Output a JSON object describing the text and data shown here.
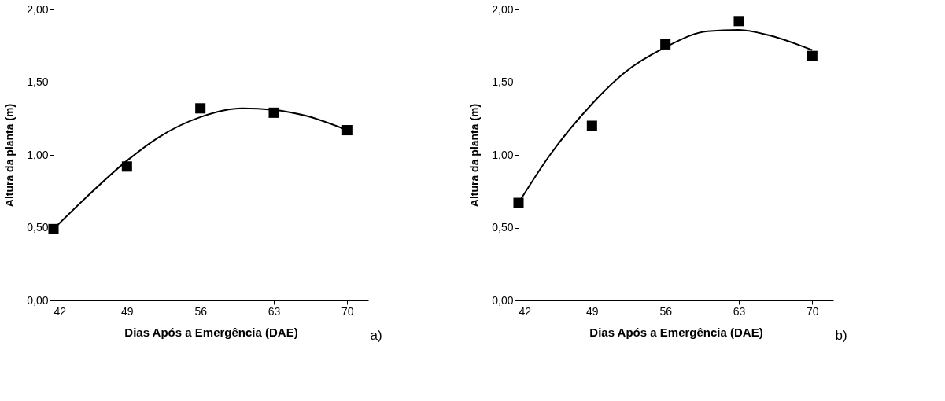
{
  "chart_data": [
    {
      "type": "scatter",
      "xlabel": "Dias Após a Emergência (DAE)",
      "ylabel": "Altura da planta (m)",
      "annotations": [
        "a)"
      ],
      "grid": false,
      "xlim": [
        42,
        72
      ],
      "xticks": [
        42,
        49,
        56,
        63,
        70
      ],
      "ylim": [
        0,
        2
      ],
      "yticks": [
        {
          "value": 0,
          "label": "0,00"
        },
        {
          "value": 0.5,
          "label": "0,50"
        },
        {
          "value": 1,
          "label": "1,00"
        },
        {
          "value": 1.5,
          "label": "1,50"
        },
        {
          "value": 2,
          "label": "2,00"
        }
      ],
      "series": [
        {
          "color": "#000000",
          "marker": "square",
          "x": [
            42,
            49,
            56,
            63,
            70
          ],
          "values": [
            0.49,
            0.92,
            1.32,
            1.29,
            1.17
          ]
        },
        {
          "type": "line",
          "color": "#000000",
          "marker": "none",
          "line_style": "solid",
          "x": [
            42,
            45,
            49,
            52,
            56,
            60,
            63,
            66,
            70
          ],
          "values": [
            0.49,
            0.7,
            0.96,
            1.12,
            1.26,
            1.32,
            1.31,
            1.27,
            1.17
          ]
        }
      ]
    },
    {
      "type": "scatter",
      "xlabel": "Dias Após a Emergência (DAE)",
      "ylabel": "Altura da planta (m)",
      "annotations": [
        "b)"
      ],
      "grid": false,
      "xlim": [
        42,
        72
      ],
      "xticks": [
        42,
        49,
        56,
        63,
        70
      ],
      "ylim": [
        0,
        2
      ],
      "yticks": [
        {
          "value": 0,
          "label": "0,00"
        },
        {
          "value": 0.5,
          "label": "0,50"
        },
        {
          "value": 1,
          "label": "1,00"
        },
        {
          "value": 1.5,
          "label": "1,50"
        },
        {
          "value": 2,
          "label": "2,00"
        }
      ],
      "series": [
        {
          "color": "#000000",
          "marker": "square",
          "x": [
            42,
            49,
            56,
            63,
            70
          ],
          "values": [
            0.67,
            1.2,
            1.76,
            1.92,
            1.68
          ]
        },
        {
          "type": "line",
          "color": "#000000",
          "marker": "none",
          "line_style": "solid",
          "x": [
            42,
            45,
            49,
            52,
            56,
            60,
            63,
            66,
            70
          ],
          "values": [
            0.67,
            1.0,
            1.35,
            1.56,
            1.74,
            1.85,
            1.86,
            1.82,
            1.72
          ]
        }
      ]
    }
  ]
}
